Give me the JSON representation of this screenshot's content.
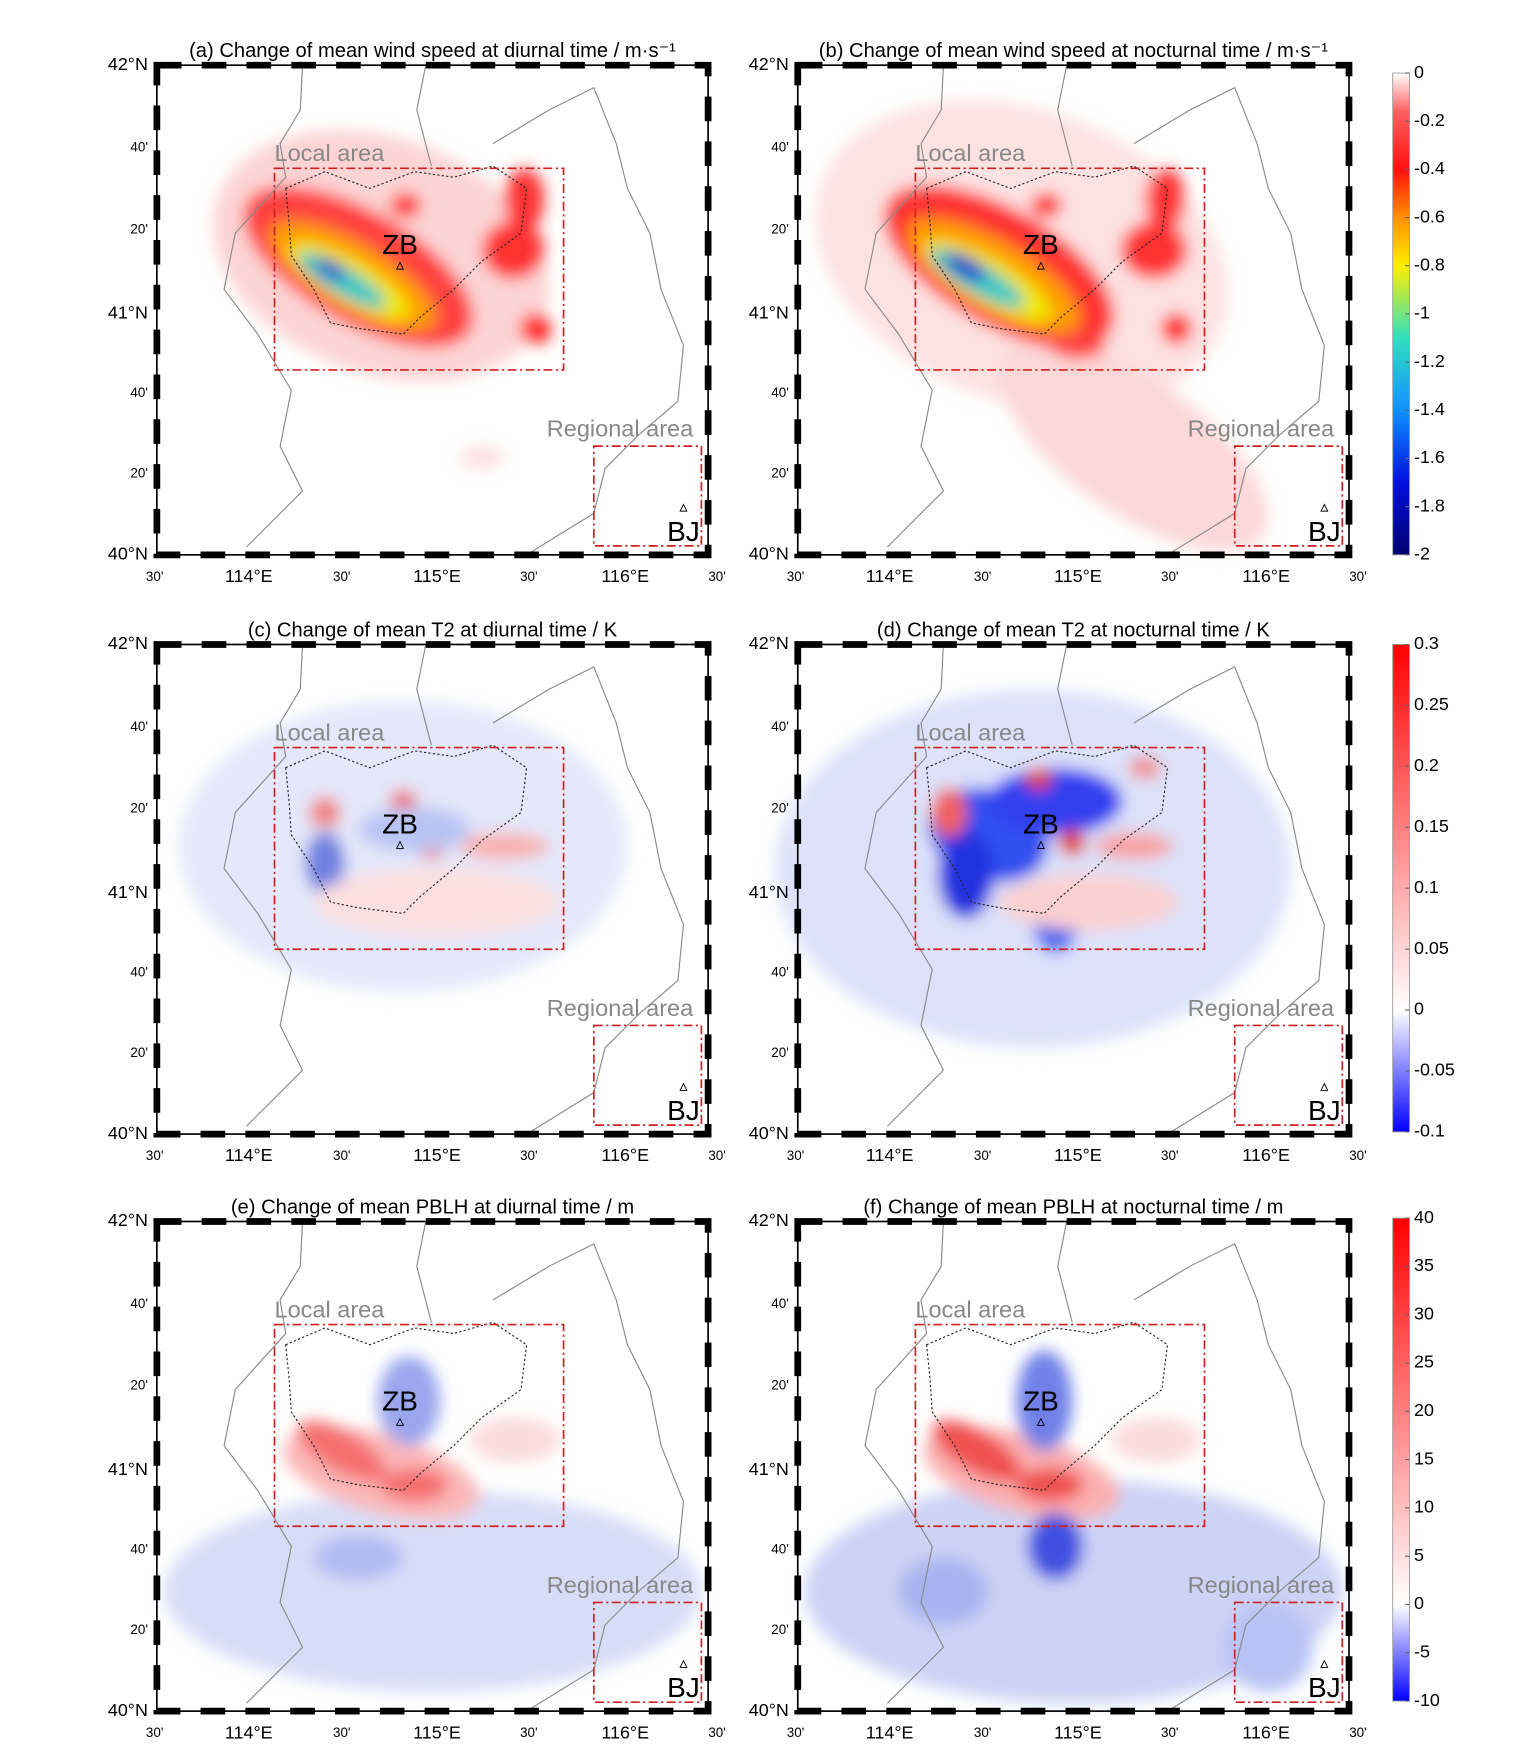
{
  "panels": [
    {
      "title": "(a) Change of mean wind speed at diurnal time / m·s⁻¹",
      "local": "Local area",
      "regional": "Regional area",
      "zb": "ZB",
      "bj": "BJ"
    },
    {
      "title": "(b) Change of mean wind speed at nocturnal time / m·s⁻¹",
      "local": "Local area",
      "regional": "Regional area",
      "zb": "ZB",
      "bj": "BJ"
    },
    {
      "title": "(c) Change of mean T2 at diurnal time / K",
      "local": "Local area",
      "regional": "Regional area",
      "zb": "ZB",
      "bj": "BJ"
    },
    {
      "title": "(d) Change of mean T2 at nocturnal time / K",
      "local": "Local area",
      "regional": "Regional area",
      "zb": "ZB",
      "bj": "BJ"
    },
    {
      "title": "(e) Change of mean PBLH at diurnal time / m",
      "local": "Local area",
      "regional": "Regional area",
      "zb": "ZB",
      "bj": "BJ"
    },
    {
      "title": "(f) Change of mean PBLH at nocturnal time / m",
      "local": "Local area",
      "regional": "Regional area",
      "zb": "ZB",
      "bj": "BJ"
    }
  ],
  "lat_labels": [
    "42°N",
    "40'",
    "20'",
    "41°N",
    "40'",
    "20'",
    "40°N"
  ],
  "lon_labels": [
    "30'",
    "114°E",
    "30'",
    "115°E",
    "30'",
    "116°E",
    "30'"
  ],
  "colorbars": [
    {
      "ticks": [
        "0",
        "-0.2",
        "-0.4",
        "-0.6",
        "-0.8",
        "-1",
        "-1.2",
        "-1.4",
        "-1.6",
        "-1.8",
        "-2"
      ]
    },
    {
      "ticks": [
        "0.3",
        "0.25",
        "0.2",
        "0.15",
        "0.1",
        "0.05",
        "0",
        "-0.05",
        "-0.1"
      ]
    },
    {
      "ticks": [
        "40",
        "35",
        "30",
        "25",
        "20",
        "15",
        "10",
        "5",
        "0",
        "-5",
        "-10"
      ]
    }
  ]
}
